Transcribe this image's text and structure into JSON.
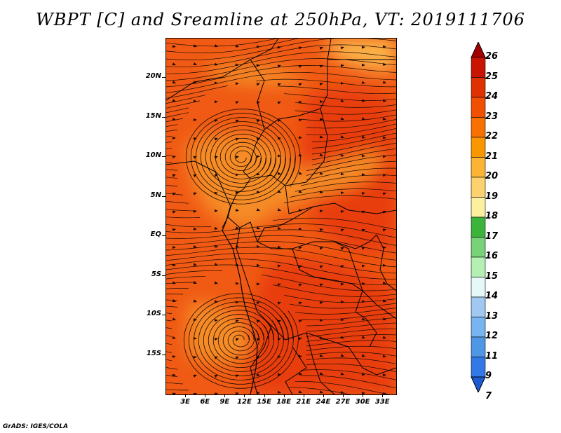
{
  "title": "WBPT [C] and Sreamline at 250hPa, VT: 2019111706",
  "footer": "GrADS: IGES/COLA",
  "lat_labels": [
    "20N",
    "15N",
    "10N",
    "5N",
    "EQ",
    "5S",
    "10S",
    "15S"
  ],
  "lat_values": [
    20,
    15,
    10,
    5,
    0,
    -5,
    -10,
    -15
  ],
  "lon_labels": [
    "3E",
    "6E",
    "9E",
    "12E",
    "15E",
    "18E",
    "21E",
    "24E",
    "27E",
    "30E",
    "33E"
  ],
  "lon_values": [
    3,
    6,
    9,
    12,
    15,
    18,
    21,
    24,
    27,
    30,
    33
  ],
  "map_extent": {
    "lon_min": 0,
    "lon_max": 35,
    "lat_min": -20,
    "lat_max": 25
  },
  "colorbar": {
    "labels": [
      "26",
      "25",
      "24",
      "23",
      "22",
      "21",
      "20",
      "19",
      "18",
      "17",
      "16",
      "15",
      "14",
      "13",
      "12",
      "11",
      "9",
      "7"
    ],
    "colors": [
      "#a50000",
      "#c81400",
      "#e03200",
      "#f05000",
      "#f87000",
      "#fa9600",
      "#fcb432",
      "#fcd26e",
      "#fcf0a0",
      "#3cb43c",
      "#78d278",
      "#b4f0b4",
      "#e6f8f8",
      "#a0c8f0",
      "#78b4f0",
      "#5096e6",
      "#3278e6",
      "#1e5ad2"
    ]
  },
  "field_colors": {
    "base": "#f05a14",
    "warm_high": "#e83c0a",
    "cool_region": "#f58c28",
    "coolest_region": "#fbb44a"
  }
}
